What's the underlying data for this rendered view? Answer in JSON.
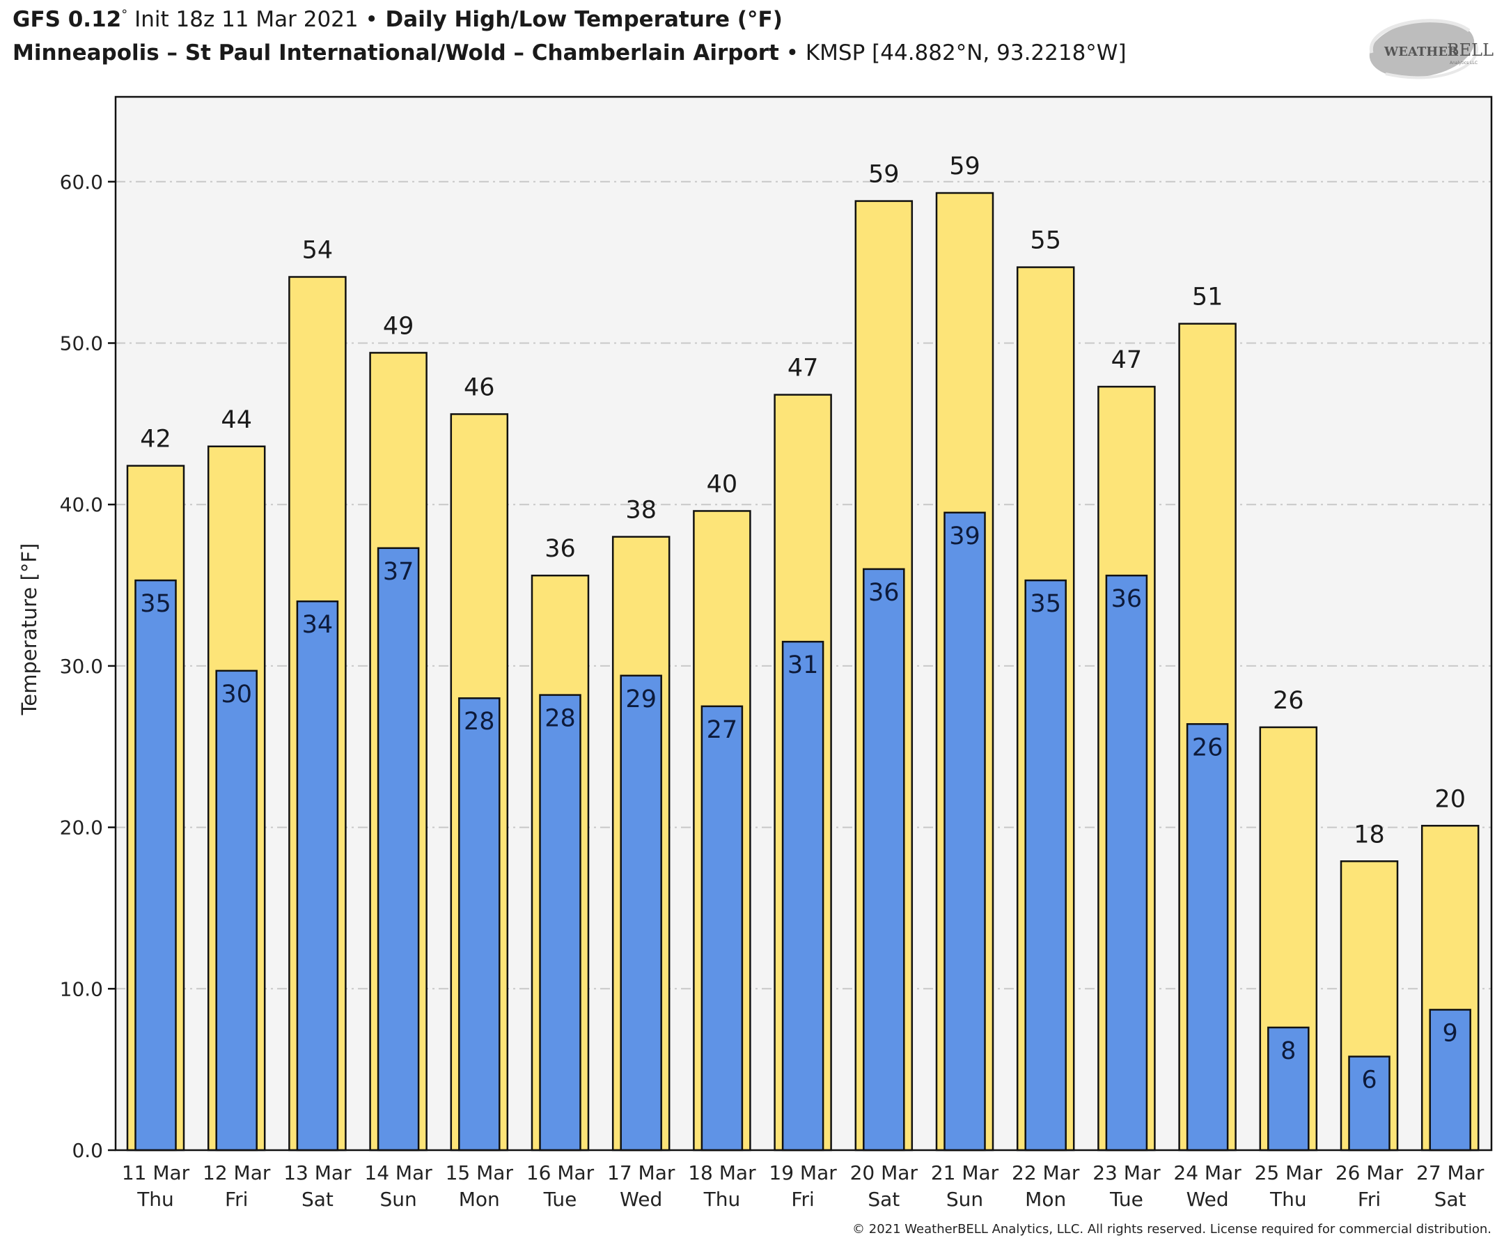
{
  "header": {
    "model": "GFS 0.12",
    "model_deg": "°",
    "init": " Init 18z 11 Mar 2021 ",
    "bullet": "•",
    "product": " Daily High/Low Temperature (°F)",
    "station_name": "Minneapolis – St Paul International/Wold – Chamberlain Airport",
    "station_info": " KMSP [44.882°N, 93.2218°W]"
  },
  "logo": {
    "text_left": "WEATHER",
    "text_right": "BELL",
    "subtext": "Analytics LLC"
  },
  "footer": "© 2021 WeatherBELL Analytics, LLC. All rights reserved. License required for commercial distribution.",
  "colors": {
    "high": "#fde478",
    "low": "#5f93e6",
    "plot_bg": "#f4f4f4",
    "grid": "#c8c8c8",
    "edge": "#111111"
  },
  "chart_data": {
    "type": "bar",
    "title": "Daily High/Low Temperature (°F)",
    "xlabel": "",
    "ylabel": "Temperature [°F]",
    "ylim": [
      0,
      65
    ],
    "yticks": [
      0,
      10,
      20,
      30,
      40,
      50,
      60
    ],
    "ytick_labels": [
      "0.0",
      "10.0",
      "20.0",
      "30.0",
      "40.0",
      "50.0",
      "60.0"
    ],
    "grid": true,
    "categories": [
      {
        "date": "11 Mar",
        "day": "Thu"
      },
      {
        "date": "12 Mar",
        "day": "Fri"
      },
      {
        "date": "13 Mar",
        "day": "Sat"
      },
      {
        "date": "14 Mar",
        "day": "Sun"
      },
      {
        "date": "15 Mar",
        "day": "Mon"
      },
      {
        "date": "16 Mar",
        "day": "Tue"
      },
      {
        "date": "17 Mar",
        "day": "Wed"
      },
      {
        "date": "18 Mar",
        "day": "Thu"
      },
      {
        "date": "19 Mar",
        "day": "Fri"
      },
      {
        "date": "20 Mar",
        "day": "Sat"
      },
      {
        "date": "21 Mar",
        "day": "Sun"
      },
      {
        "date": "22 Mar",
        "day": "Mon"
      },
      {
        "date": "23 Mar",
        "day": "Tue"
      },
      {
        "date": "24 Mar",
        "day": "Wed"
      },
      {
        "date": "25 Mar",
        "day": "Thu"
      },
      {
        "date": "26 Mar",
        "day": "Fri"
      },
      {
        "date": "27 Mar",
        "day": "Sat"
      }
    ],
    "series": [
      {
        "name": "High",
        "values": [
          42.4,
          43.6,
          54.1,
          49.4,
          45.6,
          35.6,
          38.0,
          39.6,
          46.8,
          58.8,
          59.3,
          54.7,
          47.3,
          51.2,
          26.2,
          17.9,
          20.1
        ],
        "labels": [
          "42",
          "44",
          "54",
          "49",
          "46",
          "36",
          "38",
          "40",
          "47",
          "59",
          "59",
          "55",
          "47",
          "51",
          "26",
          "18",
          "20"
        ]
      },
      {
        "name": "Low",
        "values": [
          35.3,
          29.7,
          34.0,
          37.3,
          28.0,
          28.2,
          29.4,
          27.5,
          31.5,
          36.0,
          39.5,
          35.3,
          35.6,
          26.4,
          7.6,
          5.8,
          8.7
        ],
        "labels": [
          "35",
          "30",
          "34",
          "37",
          "28",
          "28",
          "29",
          "27",
          "31",
          "36",
          "39",
          "35",
          "36",
          "26",
          "8",
          "6",
          "9"
        ]
      }
    ]
  }
}
